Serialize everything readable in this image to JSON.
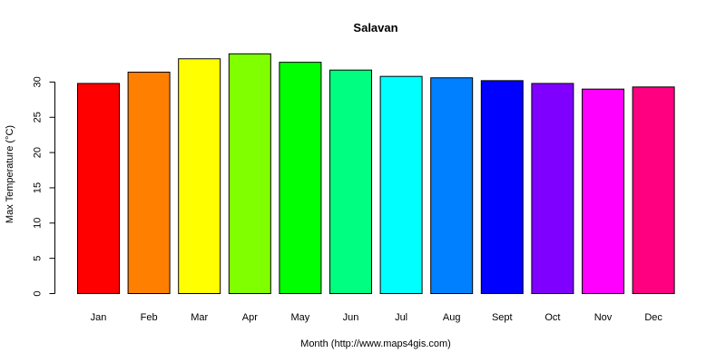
{
  "chart_data": {
    "type": "bar",
    "title": "Salavan",
    "xlabel": "Month (http://www.maps4gis.com)",
    "ylabel": "Max Temperature (°C)",
    "ylim": [
      0,
      34
    ],
    "yticks": [
      0,
      5,
      10,
      15,
      20,
      25,
      30
    ],
    "categories": [
      "Jan",
      "Feb",
      "Mar",
      "Apr",
      "May",
      "Jun",
      "Jul",
      "Aug",
      "Sept",
      "Oct",
      "Nov",
      "Dec"
    ],
    "values": [
      29.8,
      31.4,
      33.3,
      34.0,
      32.8,
      31.7,
      30.8,
      30.6,
      30.2,
      29.8,
      29.0,
      29.3
    ],
    "colors": [
      "#ff0000",
      "#ff8000",
      "#ffff00",
      "#80ff00",
      "#00ff00",
      "#00ff80",
      "#00ffff",
      "#0080ff",
      "#0000ff",
      "#8000ff",
      "#ff00ff",
      "#ff0080"
    ],
    "grid": false,
    "legend": "none"
  }
}
